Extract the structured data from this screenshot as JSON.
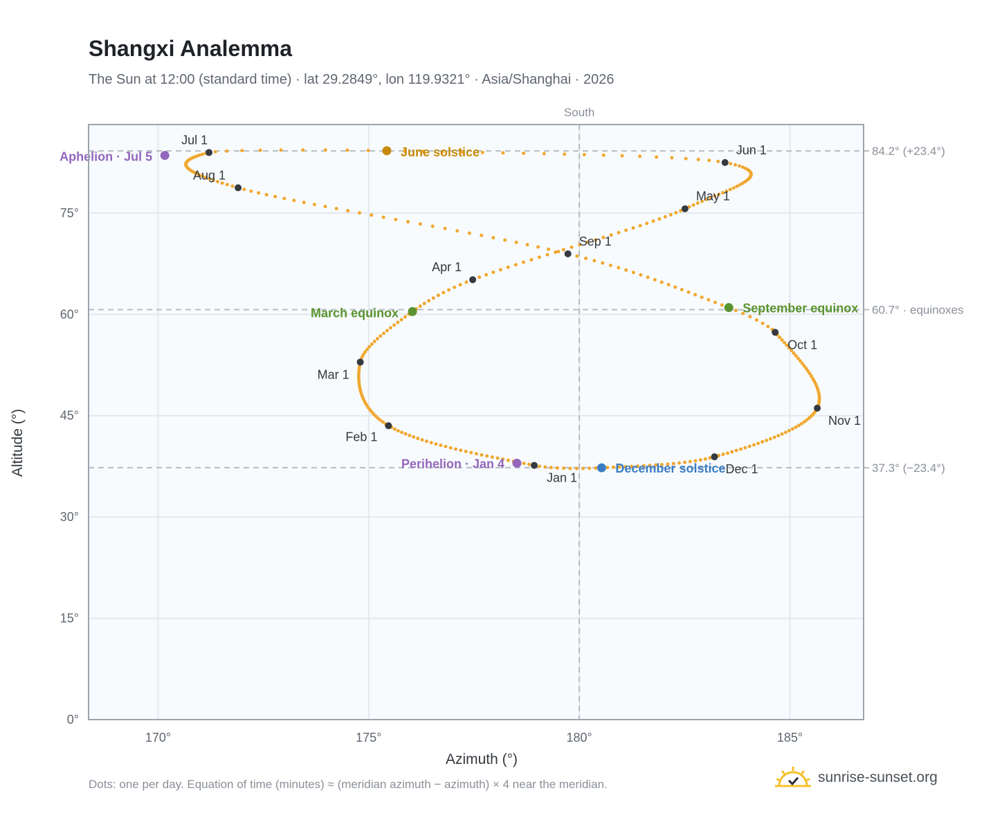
{
  "header": {
    "title": "Shangxi Analemma",
    "subtitle": "The Sun at 12:00 (standard time) · lat 29.2849°, lon 119.9321° · Asia/Shanghai · 2026"
  },
  "footer": {
    "note": "Dots: one per day. Equation of time (minutes) ≈ (meridian azimuth − azimuth) × 4 near the meridian.",
    "brand": "sunrise-sunset.org"
  },
  "colors": {
    "path": "#f0a830",
    "month_marker": "#343a40",
    "june_solstice": "#c88a0a",
    "december_solstice": "#3b7dc4",
    "equinox": "#5a9430",
    "apsis": "#9467bd",
    "reference_line": "#b4bcc4",
    "grid": "#e3e8ec",
    "plot_bg": "#f8fbfd",
    "frame": "#9aa4ae",
    "axis_text": "#5f6670",
    "ref_text": "#8a9099"
  },
  "chart_data": {
    "type": "scatter",
    "xlabel": "Azimuth (°)",
    "ylabel": "Altitude (°)",
    "xlim": [
      168.35,
      186.75
    ],
    "ylim": [
      0,
      88.1
    ],
    "xticks": [
      170,
      175,
      180,
      185
    ],
    "xtick_labels": [
      "170°",
      "175°",
      "180°",
      "185°"
    ],
    "yticks": [
      0,
      15,
      30,
      45,
      60,
      75
    ],
    "ytick_labels": [
      "0°",
      "15°",
      "30°",
      "45°",
      "60°",
      "75°"
    ],
    "grid": true,
    "meridian": {
      "azimuth": 180,
      "label": "South"
    },
    "reference_lines": [
      {
        "altitude": 84.2,
        "label": "84.2° (+23.4°)"
      },
      {
        "altitude": 60.7,
        "label": "60.7° · equinoxes"
      },
      {
        "altitude": 37.3,
        "label": "37.3° (−23.4°)"
      }
    ],
    "analemma_path": {
      "description_key": "daily sun position at 12:00",
      "knots": [
        {
          "day": 0,
          "az": 178.93,
          "alt": 37.64
        },
        {
          "day": 31,
          "az": 175.47,
          "alt": 43.51
        },
        {
          "day": 59,
          "az": 174.8,
          "alt": 52.93
        },
        {
          "day": 78,
          "az": 176.04,
          "alt": 60.41
        },
        {
          "day": 90,
          "az": 177.47,
          "alt": 65.13
        },
        {
          "day": 120,
          "az": 182.51,
          "alt": 75.63
        },
        {
          "day": 151,
          "az": 183.46,
          "alt": 82.48
        },
        {
          "day": 171,
          "az": 175.43,
          "alt": 84.22
        },
        {
          "day": 181,
          "az": 171.21,
          "alt": 83.96
        },
        {
          "day": 212,
          "az": 171.9,
          "alt": 78.74
        },
        {
          "day": 243,
          "az": 179.73,
          "alt": 68.96
        },
        {
          "day": 265,
          "az": 183.55,
          "alt": 61.0
        },
        {
          "day": 273,
          "az": 184.65,
          "alt": 57.34
        },
        {
          "day": 304,
          "az": 185.65,
          "alt": 46.11
        },
        {
          "day": 334,
          "az": 183.21,
          "alt": 38.91
        },
        {
          "day": 354,
          "az": 180.53,
          "alt": 37.28
        },
        {
          "day": 365,
          "az": 178.93,
          "alt": 37.64
        }
      ],
      "extremes": [
        {
          "az": 169.3,
          "alt": 82.5
        },
        {
          "az": 184.66,
          "alt": 80.76
        },
        {
          "az": 185.78,
          "alt": 49.0
        },
        {
          "az": 174.7,
          "alt": 49.0
        }
      ]
    },
    "month_markers": [
      {
        "label": "Jan 1",
        "az": 178.93,
        "alt": 37.64
      },
      {
        "label": "Feb 1",
        "az": 175.47,
        "alt": 43.51
      },
      {
        "label": "Mar 1",
        "az": 174.8,
        "alt": 52.93
      },
      {
        "label": "Apr 1",
        "az": 177.47,
        "alt": 65.13
      },
      {
        "label": "May 1",
        "az": 182.51,
        "alt": 75.63
      },
      {
        "label": "Jun 1",
        "az": 183.46,
        "alt": 82.48
      },
      {
        "label": "Jul 1",
        "az": 171.21,
        "alt": 83.96
      },
      {
        "label": "Aug 1",
        "az": 171.9,
        "alt": 78.74
      },
      {
        "label": "Sep 1",
        "az": 179.73,
        "alt": 68.96
      },
      {
        "label": "Oct 1",
        "az": 184.65,
        "alt": 57.34
      },
      {
        "label": "Nov 1",
        "az": 185.65,
        "alt": 46.11
      },
      {
        "label": "Dec 1",
        "az": 183.21,
        "alt": 38.91
      }
    ],
    "events": [
      {
        "label": "June solstice",
        "az": 175.43,
        "alt": 84.22,
        "kind": "june_solstice"
      },
      {
        "label": "December solstice",
        "az": 180.53,
        "alt": 37.28,
        "kind": "december_solstice"
      },
      {
        "label": "March equinox",
        "az": 176.04,
        "alt": 60.41,
        "kind": "equinox"
      },
      {
        "label": "September equinox",
        "az": 183.55,
        "alt": 61.0,
        "kind": "equinox"
      },
      {
        "label": "Aphelion · Jul 5",
        "az": 170.16,
        "alt": 83.53,
        "kind": "apsis"
      },
      {
        "label": "Perihelion · Jan 4",
        "az": 178.52,
        "alt": 37.96,
        "kind": "apsis"
      }
    ]
  }
}
